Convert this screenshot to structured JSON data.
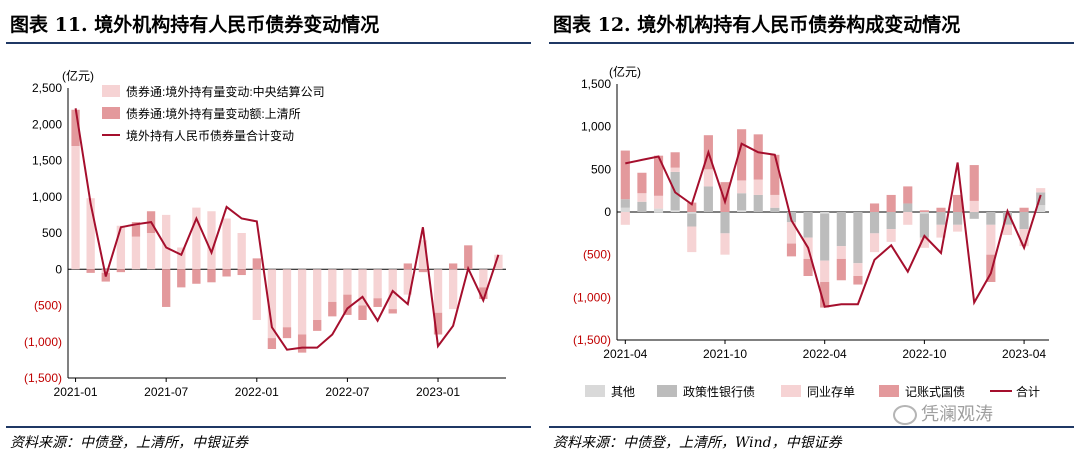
{
  "left": {
    "title": "图表 11.  境外机构持有人民币债券变动情况",
    "source": "资料来源：中债登，上清所，中银证券",
    "chart_data": {
      "type": "bar",
      "unit": "(亿元)",
      "ylim": [
        -1500,
        2500
      ],
      "yticks": [
        -1500,
        -1000,
        -500,
        0,
        500,
        1000,
        1500,
        2000,
        2500
      ],
      "ytick_labels": [
        "(1,500)",
        "(1,000)",
        "(500)",
        "0",
        "500",
        "1,000",
        "1,500",
        "2,000",
        "2,500"
      ],
      "x_labels": [
        "2021-01",
        "2021-07",
        "2022-01",
        "2022-07",
        "2023-01"
      ],
      "x_label_index": [
        0,
        6,
        12,
        18,
        24
      ],
      "months": [
        "2021-01",
        "2021-02",
        "2021-03",
        "2021-04",
        "2021-05",
        "2021-06",
        "2021-07",
        "2021-08",
        "2021-09",
        "2021-10",
        "2021-11",
        "2021-12",
        "2022-01",
        "2022-02",
        "2022-03",
        "2022-04",
        "2022-05",
        "2022-06",
        "2022-07",
        "2022-08",
        "2022-09",
        "2022-10",
        "2022-11",
        "2022-12",
        "2023-01",
        "2023-02",
        "2023-03",
        "2023-04",
        "2023-05"
      ],
      "legend": [
        "债券通:境外持有量变动:中央结算公司",
        "债券通:境外持有量变动额:上清所",
        "境外持有人民币债券量合计变动"
      ],
      "series": [
        {
          "name": "债券通:境外持有量变动:中央结算公司",
          "kind": "bar",
          "color": "#f6d3d4",
          "values": [
            1700,
            980,
            -50,
            600,
            450,
            500,
            750,
            300,
            850,
            800,
            700,
            500,
            -700,
            -950,
            -800,
            -900,
            -700,
            -450,
            -350,
            -500,
            -400,
            -550,
            -350,
            400,
            -600,
            -550,
            0,
            -250,
            200
          ]
        },
        {
          "name": "债券通:境外持有量变动额:上清所",
          "kind": "bar",
          "color": "#e3999c",
          "values": [
            500,
            -50,
            -120,
            -40,
            200,
            300,
            -520,
            -250,
            -200,
            -180,
            -100,
            -80,
            150,
            -150,
            -150,
            -250,
            -150,
            -200,
            -280,
            -200,
            -120,
            -60,
            80,
            -40,
            -300,
            80,
            330,
            -160,
            0
          ]
        },
        {
          "name": "境外持有人民币债券量合计变动",
          "kind": "line",
          "color": "#a50f2d",
          "values": [
            2220,
            900,
            -100,
            580,
            620,
            650,
            300,
            200,
            700,
            230,
            860,
            700,
            660,
            -800,
            -1110,
            -1080,
            -1080,
            -900,
            -540,
            -380,
            -710,
            -300,
            -480,
            580,
            -1060,
            -780,
            10,
            -430,
            200
          ]
        }
      ]
    }
  },
  "right": {
    "title": "图表 12.  境外机构持有人民币债券构成变动情况",
    "source": "资料来源：中债登，上清所，Wind，中银证券",
    "chart_data": {
      "type": "bar",
      "stacked": true,
      "unit": "(亿元)",
      "ylim": [
        -1500,
        1500
      ],
      "yticks": [
        -1500,
        -1000,
        -500,
        0,
        500,
        1000,
        1500
      ],
      "ytick_labels": [
        "(1,500)",
        "(1,000)",
        "(500)",
        "0",
        "500",
        "1,000",
        "1,500"
      ],
      "x_labels": [
        "2021-04",
        "2021-10",
        "2022-04",
        "2022-10",
        "2023-04"
      ],
      "x_label_index": [
        0,
        6,
        12,
        18,
        24
      ],
      "months": [
        "2021-04",
        "2021-05",
        "2021-06",
        "2021-07",
        "2021-08",
        "2021-09",
        "2021-10",
        "2021-11",
        "2021-12",
        "2022-01",
        "2022-02",
        "2022-03",
        "2022-04",
        "2022-05",
        "2022-06",
        "2022-07",
        "2022-08",
        "2022-09",
        "2022-10",
        "2022-11",
        "2022-12",
        "2023-01",
        "2023-02",
        "2023-03",
        "2023-04",
        "2023-05"
      ],
      "legend": [
        "其他",
        "政策性银行债",
        "同业存单",
        "记账式国债",
        "合计"
      ],
      "series": [
        {
          "name": "其他",
          "kind": "bar",
          "color": "#d9d9d9",
          "values": [
            50,
            0,
            40,
            20,
            -20,
            0,
            0,
            20,
            0,
            0,
            0,
            0,
            -20,
            0,
            0,
            0,
            0,
            0,
            -20,
            0,
            0,
            0,
            0,
            0,
            0,
            80
          ]
        },
        {
          "name": "政策性银行债",
          "kind": "bar",
          "color": "#bcbcbc",
          "values": [
            100,
            120,
            -10,
            450,
            -150,
            300,
            -250,
            200,
            200,
            50,
            -120,
            -300,
            -550,
            -400,
            -600,
            -250,
            -200,
            100,
            -280,
            -150,
            -150,
            -80,
            -150,
            -150,
            -200,
            150
          ]
        },
        {
          "name": "同业存单",
          "kind": "bar",
          "color": "#f6d3d4",
          "values": [
            -150,
            100,
            150,
            50,
            -300,
            200,
            -250,
            150,
            180,
            150,
            -250,
            -250,
            -250,
            -150,
            -150,
            -220,
            -150,
            -150,
            -120,
            -150,
            -80,
            130,
            -350,
            -120,
            -200,
            50
          ]
        },
        {
          "name": "记账式国债",
          "kind": "bar",
          "color": "#e3999c",
          "values": [
            570,
            240,
            470,
            180,
            110,
            400,
            350,
            600,
            530,
            470,
            -150,
            -200,
            -300,
            -250,
            -100,
            100,
            200,
            200,
            20,
            50,
            200,
            420,
            -320,
            0,
            50,
            0
          ]
        },
        {
          "name": "合计",
          "kind": "line",
          "color": "#a50f2d",
          "values": [
            570,
            610,
            650,
            230,
            90,
            700,
            120,
            800,
            700,
            670,
            -100,
            -420,
            -1110,
            -1080,
            -1080,
            -560,
            -390,
            -700,
            -280,
            -480,
            580,
            -1060,
            -720,
            10,
            -420,
            200
          ]
        }
      ]
    }
  },
  "watermark": "凭澜观涛"
}
